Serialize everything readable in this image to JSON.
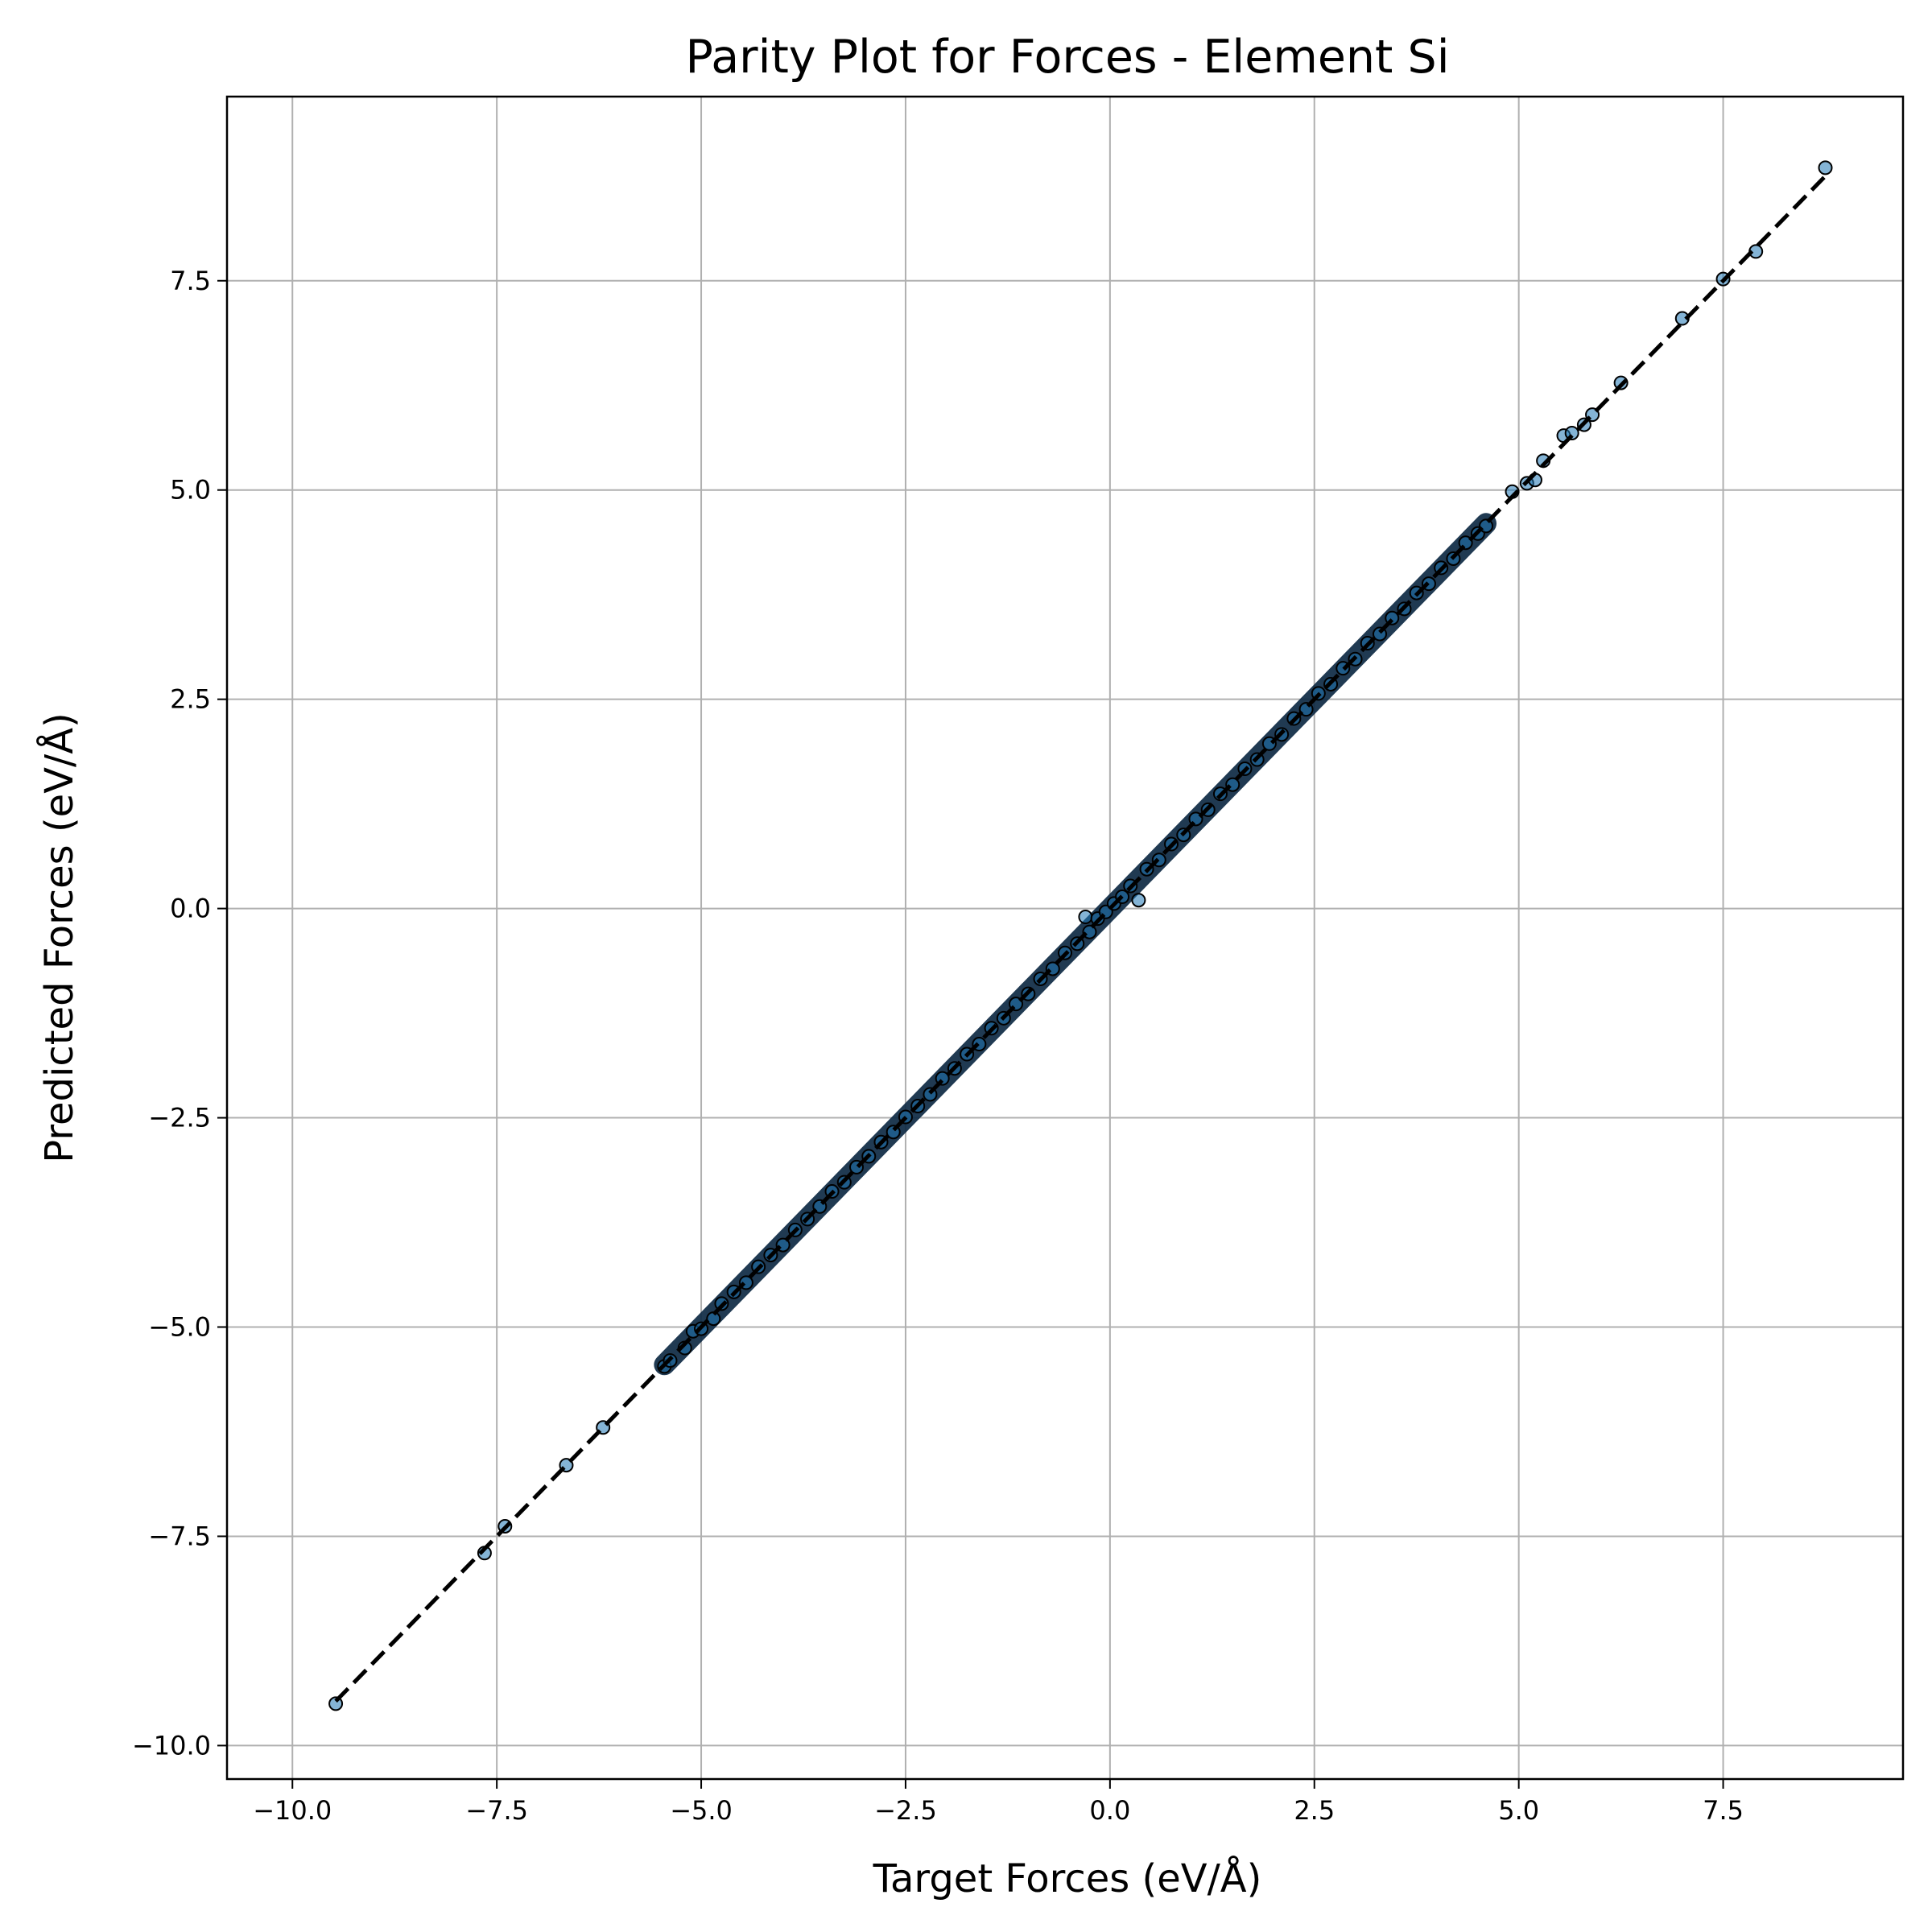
{
  "chart_data": {
    "type": "scatter",
    "title": "Parity Plot for Forces - Element Si",
    "xlabel": "Target Forces (eV/Å)",
    "ylabel": "Predicted Forces (eV/Å)",
    "xlim": [
      -10.8,
      9.7
    ],
    "ylim": [
      -10.4,
      9.7
    ],
    "xticks": [
      -10.0,
      -7.5,
      -5.0,
      -2.5,
      0.0,
      2.5,
      5.0,
      7.5
    ],
    "xtick_labels": [
      "−10.0",
      "−7.5",
      "−5.0",
      "−2.5",
      "0.0",
      "2.5",
      "5.0",
      "7.5"
    ],
    "yticks": [
      -10.0,
      -7.5,
      -5.0,
      -2.5,
      0.0,
      2.5,
      5.0,
      7.5
    ],
    "ytick_labels": [
      "−10.0",
      "−7.5",
      "−5.0",
      "−2.5",
      "0.0",
      "2.5",
      "5.0",
      "7.5"
    ],
    "grid": true,
    "reference_line": {
      "x": [
        -9.47,
        8.75
      ],
      "y": [
        -9.47,
        8.75
      ],
      "style": "dashed",
      "color": "#000000"
    },
    "series": [
      {
        "color": "#1f77b4",
        "x": [
          -9.47,
          -7.65,
          -7.4,
          -6.65,
          -6.2,
          -5.45,
          -5.38,
          -5.2,
          -5.1,
          -5.0,
          -4.85,
          -4.75,
          -4.6,
          -4.45,
          -4.3,
          -4.15,
          -4.0,
          -3.85,
          -3.7,
          -3.55,
          -3.4,
          -3.25,
          -3.1,
          -2.95,
          -2.8,
          -2.65,
          -2.5,
          -2.35,
          -2.2,
          -2.05,
          -1.9,
          -1.75,
          -1.6,
          -1.45,
          -1.3,
          -1.15,
          -1.0,
          -0.85,
          -0.7,
          -0.55,
          -0.4,
          -0.3,
          -0.25,
          -0.15,
          -0.05,
          0.05,
          0.15,
          0.25,
          0.35,
          0.45,
          0.6,
          0.75,
          0.9,
          1.05,
          1.2,
          1.35,
          1.5,
          1.65,
          1.8,
          1.95,
          2.1,
          2.25,
          2.4,
          2.55,
          2.7,
          2.85,
          3.0,
          3.15,
          3.3,
          3.45,
          3.6,
          3.75,
          3.9,
          4.05,
          4.2,
          4.35,
          4.5,
          4.6,
          4.92,
          5.1,
          5.2,
          5.3,
          5.55,
          5.65,
          5.8,
          5.9,
          6.25,
          7.0,
          7.5,
          7.9,
          8.75
        ],
        "y": [
          -9.5,
          -7.7,
          -7.38,
          -6.65,
          -6.2,
          -5.47,
          -5.4,
          -5.25,
          -5.05,
          -5.02,
          -4.9,
          -4.72,
          -4.58,
          -4.47,
          -4.28,
          -4.14,
          -4.02,
          -3.84,
          -3.71,
          -3.56,
          -3.38,
          -3.27,
          -3.09,
          -2.96,
          -2.79,
          -2.67,
          -2.49,
          -2.36,
          -2.22,
          -2.03,
          -1.91,
          -1.74,
          -1.62,
          -1.43,
          -1.31,
          -1.14,
          -1.02,
          -0.84,
          -0.72,
          -0.53,
          -0.42,
          -0.1,
          -0.28,
          -0.12,
          -0.04,
          0.06,
          0.14,
          0.27,
          0.1,
          0.47,
          0.58,
          0.77,
          0.88,
          1.07,
          1.18,
          1.37,
          1.48,
          1.67,
          1.78,
          1.97,
          2.08,
          2.27,
          2.38,
          2.57,
          2.68,
          2.87,
          2.98,
          3.17,
          3.28,
          3.47,
          3.58,
          3.77,
          3.88,
          4.07,
          4.18,
          4.37,
          4.48,
          4.57,
          4.98,
          5.08,
          5.12,
          5.35,
          5.65,
          5.68,
          5.78,
          5.9,
          6.28,
          7.05,
          7.52,
          7.85,
          8.85
        ]
      }
    ]
  }
}
